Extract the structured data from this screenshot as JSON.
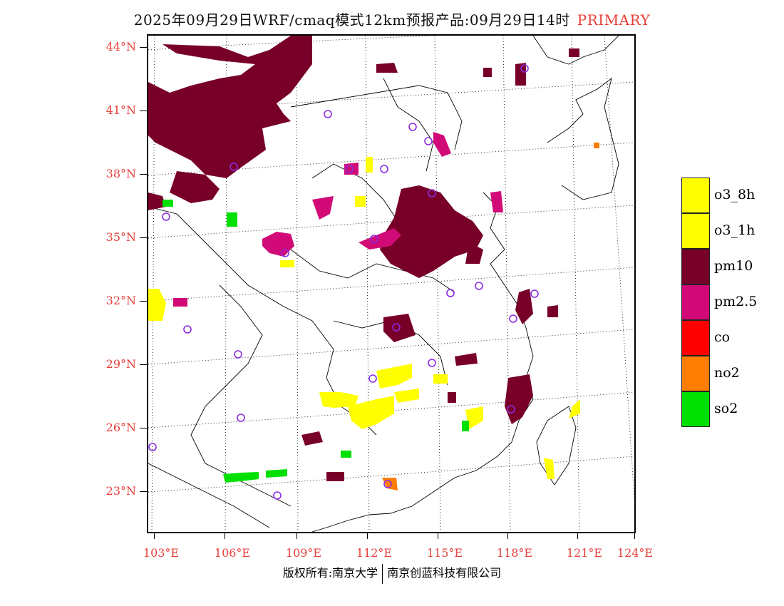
{
  "title": {
    "main": "2025年09月29日WRF/cmaq模式12km预报产品:09月29日14时",
    "tag": "PRIMARY"
  },
  "axes": {
    "lat_labels": [
      "44°N",
      "41°N",
      "38°N",
      "35°N",
      "32°N",
      "29°N",
      "26°N",
      "23°N"
    ],
    "lon_labels": [
      "103°E",
      "106°E",
      "109°E",
      "112°E",
      "115°E",
      "118°E",
      "121°E",
      "124°E"
    ]
  },
  "legend": [
    {
      "label": "o3_8h",
      "color": "#ffff00"
    },
    {
      "label": "o3_1h",
      "color": "#ffff00"
    },
    {
      "label": "pm10",
      "color": "#780028"
    },
    {
      "label": "pm2.5",
      "color": "#d20a78"
    },
    {
      "label": "co",
      "color": "#ff0000"
    },
    {
      "label": "no2",
      "color": "#ff7d00"
    },
    {
      "label": "so2",
      "color": "#00e000"
    }
  ],
  "footer": {
    "left": "版权所有:南京大学",
    "right": "南京创蓝科技有限公司"
  },
  "colors": {
    "axis_label": "#e8403a",
    "station": "#8a2be2"
  }
}
